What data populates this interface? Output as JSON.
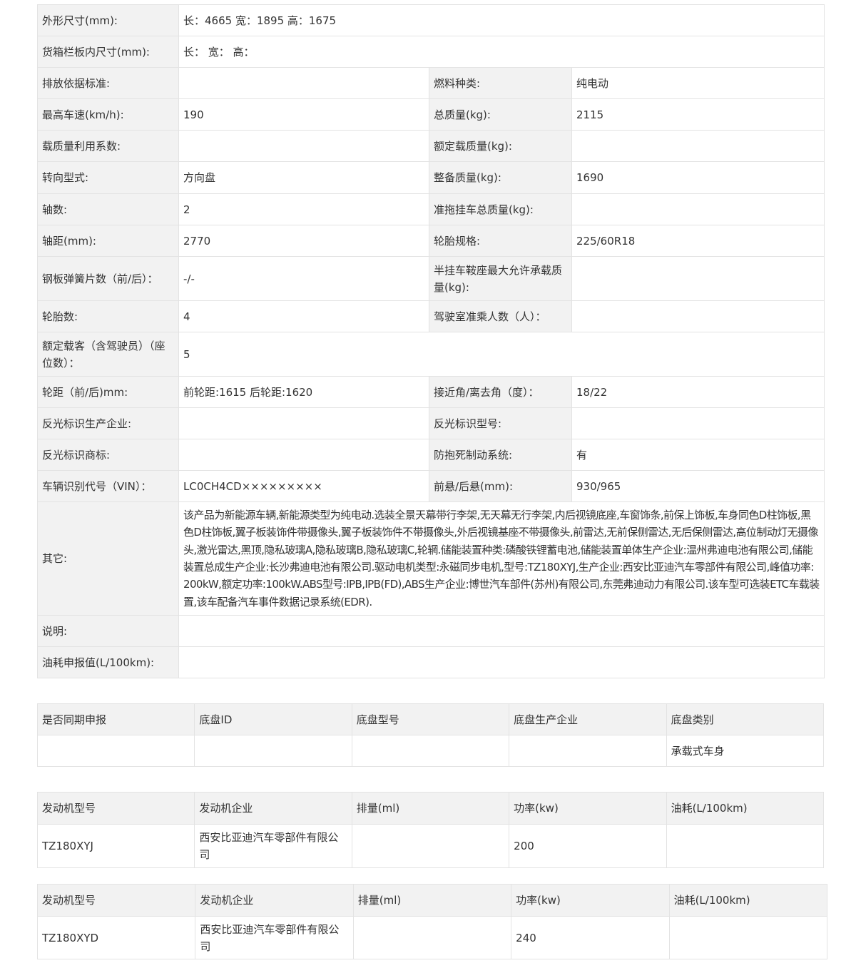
{
  "main": {
    "rows": [
      {
        "l1": "外形尺寸(mm):",
        "v1": "长：4665 宽：1895 高：1675",
        "span": true
      },
      {
        "l1": "货箱栏板内尺寸(mm):",
        "v1": "长： 宽： 高：",
        "span": true
      },
      {
        "l1": "排放依据标准:",
        "v1": "",
        "l2": "燃料种类:",
        "v2": "纯电动"
      },
      {
        "l1": "最高车速(km/h):",
        "v1": "190",
        "l2": "总质量(kg):",
        "v2": "2115"
      },
      {
        "l1": "载质量利用系数:",
        "v1": "",
        "l2": "额定载质量(kg):",
        "v2": ""
      },
      {
        "l1": "转向型式:",
        "v1": "方向盘",
        "l2": "整备质量(kg):",
        "v2": "1690"
      },
      {
        "l1": "轴数:",
        "v1": "2",
        "l2": "准拖挂车总质量(kg):",
        "v2": ""
      },
      {
        "l1": "轴距(mm):",
        "v1": "2770",
        "l2": "轮胎规格:",
        "v2": "225/60R18"
      },
      {
        "l1": "钢板弹簧片数（前/后）：",
        "v1": "-/-",
        "l2": "半挂车鞍座最大允许承载质量(kg):",
        "v2": ""
      },
      {
        "l1": "轮胎数:",
        "v1": "4",
        "l2": "驾驶室准乘人数（人）：",
        "v2": ""
      },
      {
        "l1": "额定载客（含驾驶员）（座位数）：",
        "v1": "5",
        "span": true
      },
      {
        "l1": "轮距（前/后)mm:",
        "v1": "前轮距:1615 后轮距:1620",
        "l2": "接近角/离去角（度）：",
        "v2": "18/22"
      },
      {
        "l1": "反光标识生产企业:",
        "v1": "",
        "l2": "反光标识型号:",
        "v2": ""
      },
      {
        "l1": "反光标识商标:",
        "v1": "",
        "l2": "防抱死制动系统:",
        "v2": "有"
      },
      {
        "l1": "车辆识别代号（VIN）：",
        "v1": "LC0CH4CD×××××××××",
        "l2": "前悬/后悬(mm):",
        "v2": "930/965"
      },
      {
        "l1": "其它:",
        "v1": "该产品为新能源车辆,新能源类型为纯电动.选装全景天幕带行李架,无天幕无行李架,内后视镜底座,车窗饰条,前保上饰板,车身同色D柱饰板,黑色D柱饰板,翼子板装饰件带摄像头,翼子板装饰件不带摄像头,外后视镜基座不带摄像头,前雷达,无前保侧雷达,无后保侧雷达,高位制动灯无摄像头,激光雷达,黑顶,隐私玻璃A,隐私玻璃B,隐私玻璃C,轮辋.储能装置种类:磷酸铁锂蓄电池,储能装置单体生产企业:温州弗迪电池有限公司,储能装置总成生产企业:长沙弗迪电池有限公司.驱动电机类型:永磁同步电机,型号:TZ180XYJ,生产企业:西安比亚迪汽车零部件有限公司,峰值功率:200kW,额定功率:100kW.ABS型号:IPB,IPB(FD),ABS生产企业:博世汽车部件(苏州)有限公司,东莞弗迪动力有限公司.该车型可选装ETC车载装置,该车配备汽车事件数据记录系统(EDR).",
        "span": true
      },
      {
        "l1": "说明:",
        "v1": "",
        "span": true
      },
      {
        "l1": "油耗申报值(L/100km):",
        "v1": "",
        "span": true
      }
    ]
  },
  "chassis": {
    "headers": [
      "是否同期申报",
      "底盘ID",
      "底盘型号",
      "底盘生产企业",
      "底盘类别"
    ],
    "row": [
      "",
      "",
      "",
      "",
      "承载式车身"
    ]
  },
  "engines": [
    {
      "headers": [
        "发动机型号",
        "发动机企业",
        "排量(ml)",
        "功率(kw)",
        "油耗(L/100km)"
      ],
      "row": [
        "TZ180XYJ",
        "西安比亚迪汽车零部件有限公司",
        "",
        "200",
        ""
      ]
    },
    {
      "headers": [
        "发动机型号",
        "发动机企业",
        "排量(ml)",
        "功率(kw)",
        "油耗(L/100km)"
      ],
      "row": [
        "TZ180XYD",
        "西安比亚迪汽车零部件有限公司",
        "",
        "240",
        ""
      ]
    }
  ]
}
